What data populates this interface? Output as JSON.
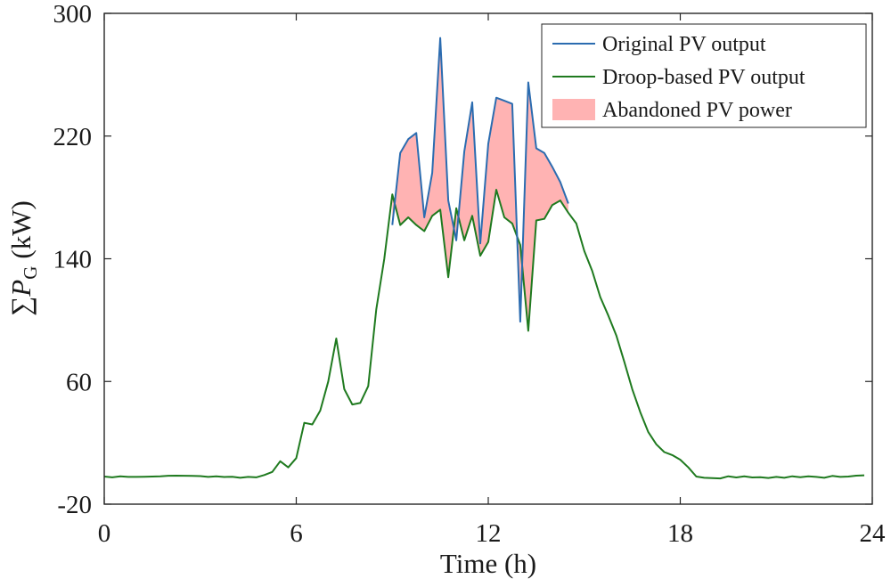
{
  "chart_data": {
    "type": "line",
    "title": "",
    "xlabel": "Time (h)",
    "ylabel_prefix": "∑",
    "ylabel_symbol": "P",
    "ylabel_subscript": "G",
    "ylabel_unit": "(kW)",
    "xlim": [
      0,
      24
    ],
    "ylim": [
      -20,
      300
    ],
    "xticks": [
      0,
      6,
      12,
      18,
      24
    ],
    "xtick_labels": [
      "0",
      "6",
      "12",
      "18",
      "24"
    ],
    "yticks": [
      -20,
      60,
      140,
      220,
      300
    ],
    "ytick_labels": [
      "-20",
      "60",
      "140",
      "220",
      "300"
    ],
    "grid": false,
    "legend_position": "top-right",
    "colors": {
      "original": "#2b6cb0",
      "droop": "#1f7a1f",
      "abandoned": "#ffb3b3",
      "axis": "#262626"
    },
    "legend": [
      {
        "key": "original",
        "label": "Original PV output"
      },
      {
        "key": "droop",
        "label": "Droop-based PV output"
      },
      {
        "key": "abandoned",
        "label": "Abandoned PV power"
      }
    ],
    "series": [
      {
        "name": "Original PV output",
        "key": "original",
        "x": [
          9.0,
          9.25,
          9.5,
          9.75,
          10.0,
          10.25,
          10.5,
          10.75,
          11.0,
          11.25,
          11.5,
          11.75,
          12.0,
          12.25,
          12.5,
          12.75,
          13.0,
          13.25,
          13.5,
          13.75,
          14.0,
          14.25,
          14.5
        ],
        "y": [
          162,
          209,
          218,
          222,
          167,
          196,
          284,
          178,
          152,
          210,
          242,
          150,
          215,
          245,
          243,
          241,
          99,
          255,
          212,
          209,
          200,
          190,
          176
        ]
      },
      {
        "name": "Droop-based PV output",
        "key": "droop",
        "x": [
          0.0,
          0.25,
          0.5,
          0.75,
          1.0,
          1.25,
          1.5,
          1.75,
          2.0,
          2.25,
          2.5,
          2.75,
          3.0,
          3.25,
          3.5,
          3.75,
          4.0,
          4.25,
          4.5,
          4.75,
          5.0,
          5.25,
          5.5,
          5.75,
          6.0,
          6.25,
          6.5,
          6.75,
          7.0,
          7.25,
          7.5,
          7.75,
          8.0,
          8.25,
          8.5,
          8.75,
          9.0,
          9.25,
          9.5,
          9.75,
          10.0,
          10.25,
          10.5,
          10.75,
          11.0,
          11.25,
          11.5,
          11.75,
          12.0,
          12.25,
          12.5,
          12.75,
          13.0,
          13.25,
          13.5,
          13.75,
          14.0,
          14.25,
          14.5,
          14.75,
          15.0,
          15.25,
          15.5,
          15.75,
          16.0,
          16.25,
          16.5,
          16.75,
          17.0,
          17.25,
          17.5,
          17.75,
          18.0,
          18.25,
          18.5,
          18.75,
          19.0,
          19.25,
          19.5,
          19.75,
          20.0,
          20.25,
          20.5,
          20.75,
          21.0,
          21.25,
          21.5,
          21.75,
          22.0,
          22.25,
          22.5,
          22.75,
          23.0,
          23.25,
          23.5,
          23.75
        ],
        "y": [
          -2,
          -2.5,
          -1.8,
          -2.2,
          -2.2,
          -2.1,
          -2.0,
          -1.8,
          -1.5,
          -1.4,
          -1.5,
          -1.6,
          -1.7,
          -2.2,
          -1.9,
          -2.3,
          -2.1,
          -2.8,
          -2.2,
          -2.5,
          -1.0,
          1.0,
          8,
          4,
          10,
          33,
          32,
          41,
          60,
          88,
          55,
          45,
          46,
          57,
          107,
          140,
          182,
          162,
          167,
          162,
          158,
          168,
          172,
          128,
          173,
          152,
          168,
          142,
          151,
          185,
          167,
          163,
          149,
          93,
          165,
          166,
          175,
          178,
          170,
          163,
          145,
          132,
          115,
          103,
          90,
          73,
          55,
          40,
          27,
          19,
          14,
          12,
          9,
          4,
          -2,
          -2.8,
          -3.0,
          -3.2,
          -1.8,
          -2.6,
          -1.9,
          -2.6,
          -2.4,
          -2.9,
          -2.2,
          -2.8,
          -1.8,
          -2.4,
          -1.8,
          -2.2,
          -2.8,
          -1.6,
          -2.2,
          -2.0,
          -1.4,
          -1.2
        ]
      }
    ],
    "abandoned_region": {
      "label": "Abandoned PV power",
      "between": [
        "original",
        "droop"
      ],
      "x_range": [
        9.0,
        14.5
      ]
    }
  }
}
